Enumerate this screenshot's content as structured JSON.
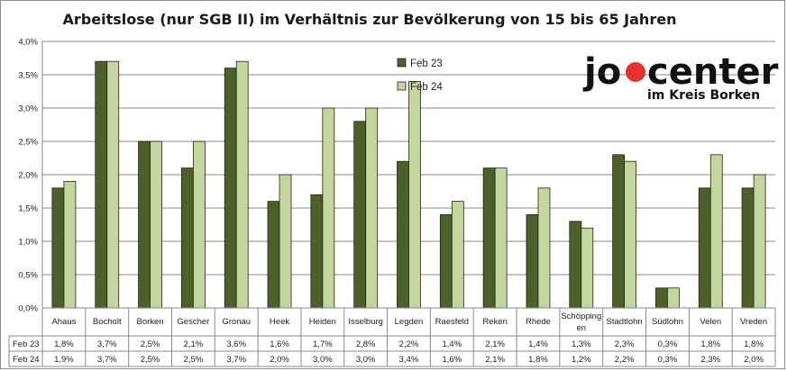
{
  "chart_data": {
    "type": "bar",
    "title": "Arbeitslose (nur SGB II) im Verhältnis zur Bevölkerung von 15 bis 65 Jahren",
    "categories": [
      "Ahaus",
      "Bocholt",
      "Borken",
      "Gescher",
      "Gronau",
      "Heek",
      "Heiden",
      "Isselburg",
      "Legden",
      "Raesfeld",
      "Reken",
      "Rhede",
      "Schöpping\nen",
      "Stadtlohn",
      "Südlohn",
      "Velen",
      "Vreden"
    ],
    "series": [
      {
        "name": "Feb 23",
        "color": "#4e5f2a",
        "values": [
          1.8,
          3.7,
          2.5,
          2.1,
          3.6,
          1.6,
          1.7,
          2.8,
          2.2,
          1.4,
          2.1,
          1.4,
          1.3,
          2.3,
          0.3,
          1.8,
          1.8
        ],
        "labels": [
          "1,8%",
          "3,7%",
          "2,5%",
          "2,1%",
          "3,6%",
          "1,6%",
          "1,7%",
          "2,8%",
          "2,2%",
          "1,4%",
          "2,1%",
          "1,4%",
          "1,3%",
          "2,3%",
          "0,3%",
          "1,8%",
          "1,8%"
        ]
      },
      {
        "name": "Feb 24",
        "color": "#c3d69b",
        "values": [
          1.9,
          3.7,
          2.5,
          2.5,
          3.7,
          2.0,
          3.0,
          3.0,
          3.4,
          1.6,
          2.1,
          1.8,
          1.2,
          2.2,
          0.3,
          2.3,
          2.0
        ],
        "labels": [
          "1,9%",
          "3,7%",
          "2,5%",
          "2,5%",
          "3,7%",
          "2,0%",
          "3,0%",
          "3,0%",
          "3,4%",
          "1,6%",
          "2,1%",
          "1,8%",
          "1,2%",
          "2,2%",
          "0,3%",
          "2,3%",
          "2,0%"
        ]
      }
    ],
    "ylim": [
      0,
      4.0
    ],
    "yticks": [
      "0,0%",
      "0,5%",
      "1,0%",
      "1,5%",
      "2,0%",
      "2,5%",
      "3,0%",
      "3,5%",
      "4,0%"
    ],
    "grid": true,
    "legend_position": "top-center",
    "data_table": true
  },
  "logo": {
    "main_left": "jo",
    "main_right": "center",
    "sub": "im Kreis Borken",
    "accent": "#e8312e"
  }
}
